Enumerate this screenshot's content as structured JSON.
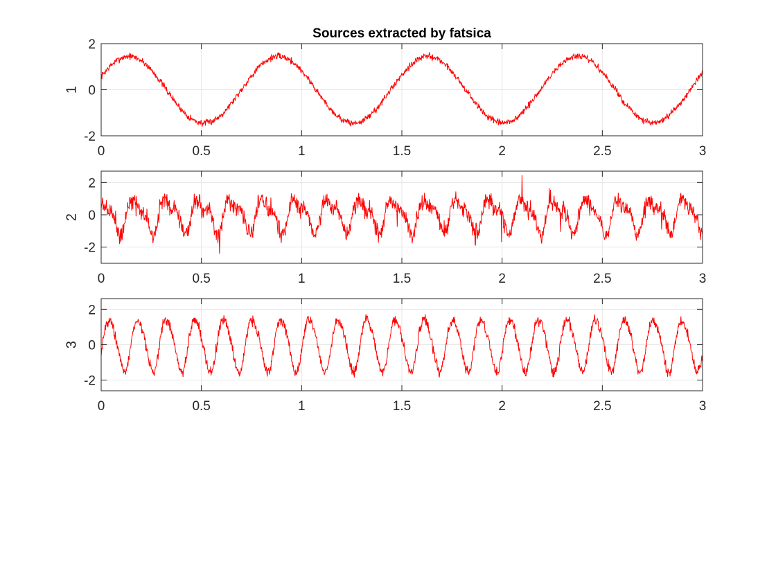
{
  "figure": {
    "title": "Sources extracted by fatsica"
  },
  "chart_data": [
    {
      "type": "line",
      "title": "Sources extracted by fatsica",
      "xlabel": "",
      "ylabel": "1",
      "xlim": [
        0,
        3
      ],
      "ylim": [
        -2,
        2
      ],
      "xticks": [
        0,
        0.5,
        1,
        1.5,
        2,
        2.5,
        3
      ],
      "xtick_labels": [
        "0",
        "0.5",
        "1",
        "1.5",
        "2",
        "2.5",
        "3"
      ],
      "yticks": [
        -2,
        0,
        2
      ],
      "ytick_labels": [
        "-2",
        "0",
        "2"
      ],
      "grid": true,
      "color": "#ff0000",
      "signal": {
        "frequency_hz": 1.34,
        "amplitude": 1.45,
        "phase_rad": 0.4,
        "noise": 0.12,
        "harmonic": 0.0,
        "points": 1500,
        "seed": 7
      },
      "series": [
        {
          "x": [
            0,
            0.125,
            0.25,
            0.375,
            0.5,
            0.625,
            0.75,
            0.875,
            1,
            1.125,
            1.25,
            1.375,
            1.5,
            1.625,
            1.75,
            1.875,
            2,
            2.125,
            2.25,
            2.375,
            2.5,
            2.625,
            2.75,
            2.875,
            3
          ],
          "y": [
            0.6,
            1.5,
            0.9,
            -0.4,
            -1.4,
            -1.1,
            0.2,
            1.3,
            1.3,
            0.1,
            -1.3,
            -1.3,
            -0.2,
            1.2,
            1.4,
            0.2,
            -1.2,
            -1.2,
            0.1,
            1.3,
            1.4,
            0.4,
            -1.1,
            -1.6,
            -0.4
          ]
        }
      ]
    },
    {
      "type": "line",
      "xlabel": "",
      "ylabel": "2",
      "xlim": [
        0,
        3
      ],
      "ylim": [
        -3,
        2.7
      ],
      "xticks": [
        0,
        0.5,
        1,
        1.5,
        2,
        2.5,
        3
      ],
      "xtick_labels": [
        "0",
        "0.5",
        "1",
        "1.5",
        "2",
        "2.5",
        "3"
      ],
      "yticks": [
        -2,
        0,
        2
      ],
      "ytick_labels": [
        "-2",
        "0",
        "2"
      ],
      "grid": true,
      "color": "#ff0000",
      "signal": {
        "frequency_hz": 6.2,
        "amplitude": 0.9,
        "phase_rad": 1.2,
        "noise": 0.45,
        "harmonic": 0.4,
        "points": 1500,
        "seed": 21
      },
      "series": [
        {
          "x": [
            0,
            0.25,
            0.5,
            0.75,
            1,
            1.25,
            1.5,
            1.75,
            2,
            2.25,
            2.5,
            2.75,
            3
          ],
          "y": [
            0.6,
            0.5,
            0.9,
            0.2,
            0.3,
            0.4,
            0.2,
            0.6,
            0.5,
            0.4,
            0.2,
            0.5,
            -0.7
          ]
        }
      ]
    },
    {
      "type": "line",
      "xlabel": "",
      "ylabel": "3",
      "xlim": [
        0,
        3
      ],
      "ylim": [
        -2.6,
        2.6
      ],
      "xticks": [
        0,
        0.5,
        1,
        1.5,
        2,
        2.5,
        3
      ],
      "xtick_labels": [
        "0",
        "0.5",
        "1",
        "1.5",
        "2",
        "2.5",
        "3"
      ],
      "yticks": [
        -2,
        0,
        2
      ],
      "ytick_labels": [
        "-2",
        "0",
        "2"
      ],
      "grid": true,
      "color": "#ff0000",
      "signal": {
        "frequency_hz": 7.0,
        "amplitude": 1.45,
        "phase_rad": -0.3,
        "noise": 0.25,
        "harmonic": 0.15,
        "points": 1500,
        "seed": 43
      },
      "series": [
        {
          "x": [
            0,
            0.25,
            0.5,
            0.75,
            1,
            1.25,
            1.5,
            1.75,
            2,
            2.25,
            2.5,
            2.75,
            3
          ],
          "y": [
            0.4,
            -0.5,
            0.8,
            -1.0,
            0.9,
            1.3,
            -1.4,
            1.0,
            -1.0,
            0.7,
            -0.4,
            0.2,
            -0.4
          ]
        }
      ]
    }
  ]
}
